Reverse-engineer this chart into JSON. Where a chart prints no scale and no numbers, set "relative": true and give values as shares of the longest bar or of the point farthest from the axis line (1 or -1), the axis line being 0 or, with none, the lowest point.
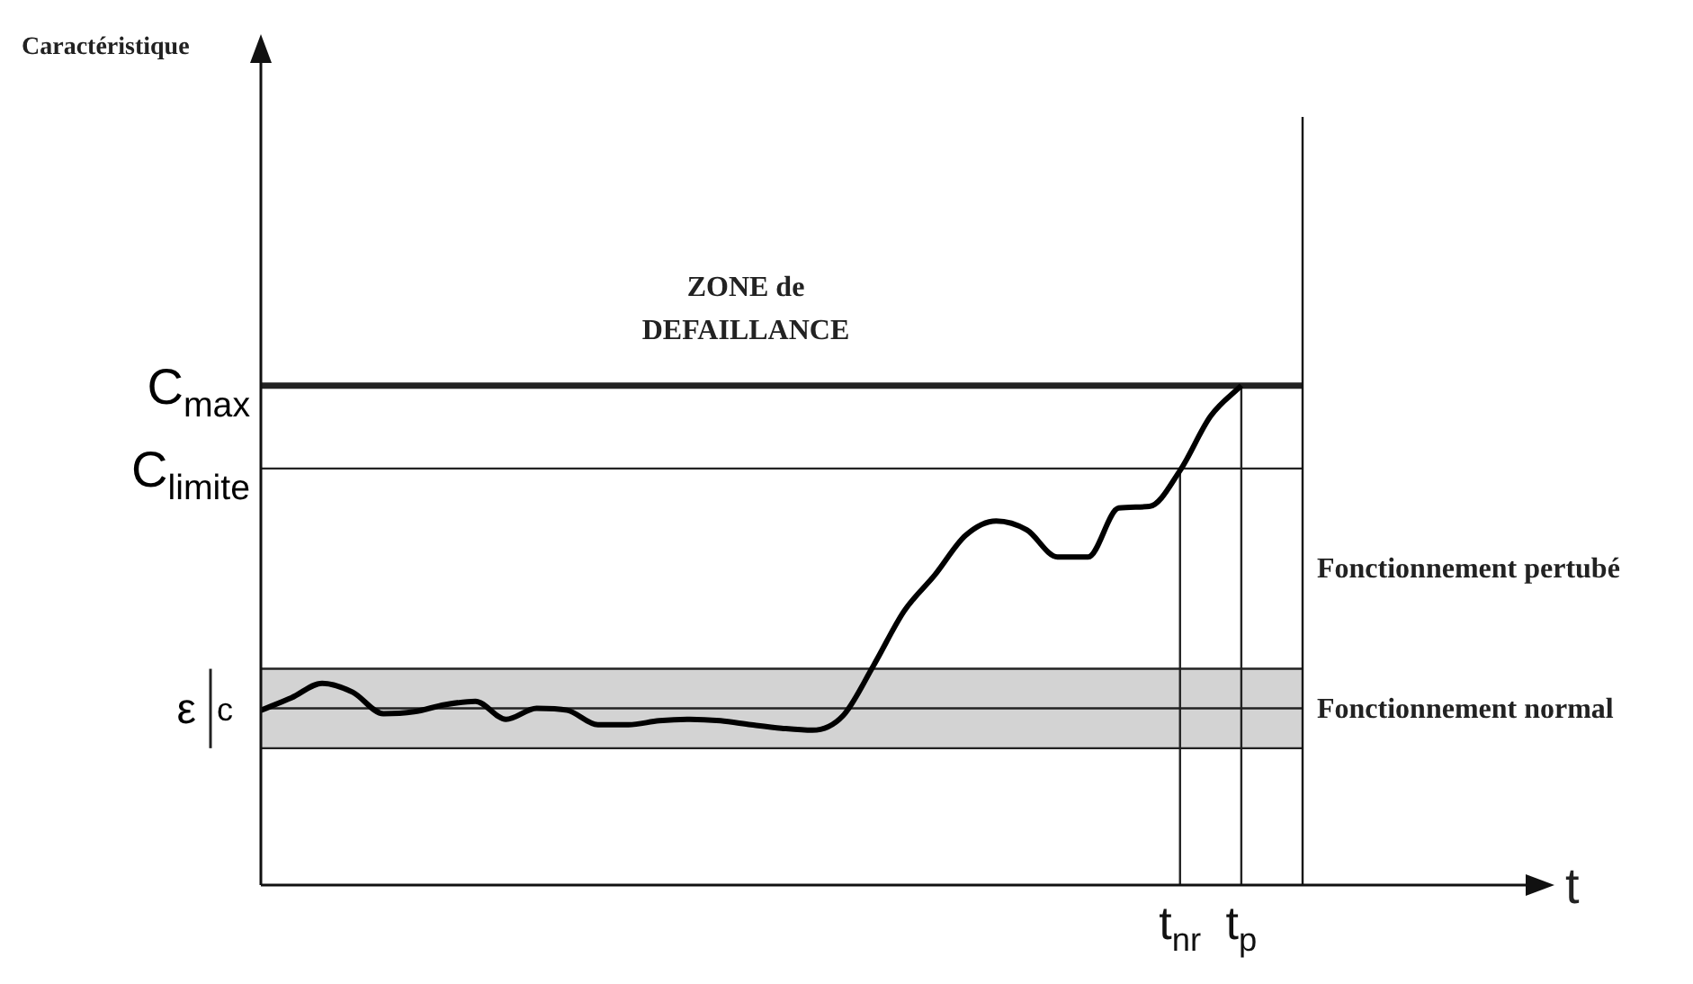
{
  "chart_data": {
    "type": "line",
    "relative": true,
    "categories": [
      null,
      null,
      null,
      null,
      null,
      null,
      null,
      null,
      null,
      null,
      null,
      null,
      null,
      null,
      null,
      null,
      null,
      null,
      null,
      null,
      null,
      null,
      null,
      null,
      null,
      null,
      null,
      null,
      null,
      null,
      "t$_{nr}$",
      null,
      "t$_{p}$",
      null,
      null
    ],
    "series": [
      {
        "color": "#000000",
        "values": [
          0.35,
          0.375,
          0.404,
          0.386,
          0.343,
          0.347,
          0.361,
          0.368,
          0.332,
          0.354,
          0.35,
          0.321,
          0.321,
          0.329,
          0.332,
          0.329,
          0.321,
          0.314,
          0.31,
          0.339,
          0.44,
          0.549,
          0.621,
          0.7,
          0.729,
          0.711,
          0.657,
          0.657,
          0.755,
          0.758,
          0.83,
          0.939,
          1.0,
          null,
          null
        ]
      }
    ],
    "ref_lines": [
      {
        "axis": "y",
        "value": 1.0,
        "label": "C$_{max}$"
      },
      {
        "axis": "y",
        "value": 0.834,
        "label": "C$_{limite}$"
      },
      {
        "axis": "y",
        "value": 0.354,
        "label": "c"
      },
      {
        "axis": "y",
        "value": 0.433
      },
      {
        "axis": "y",
        "value": 0.274
      },
      {
        "axis": "x",
        "value": "t$_{nr}$"
      },
      {
        "axis": "x",
        "value": "t$_{p}$"
      }
    ],
    "bands": [
      {
        "axis": "y",
        "from": 0.274,
        "to": 0.433,
        "label": "ε",
        "color": "#d3d3d3"
      }
    ],
    "annotations": [
      "ZONE de DEFAILLANCE",
      "Fonctionnement pertubé",
      "Fonctionnement normal",
      "t",
      "Caractéristique"
    ],
    "legend": false,
    "grid": false,
    "marker": "none",
    "line_style": "solid"
  }
}
